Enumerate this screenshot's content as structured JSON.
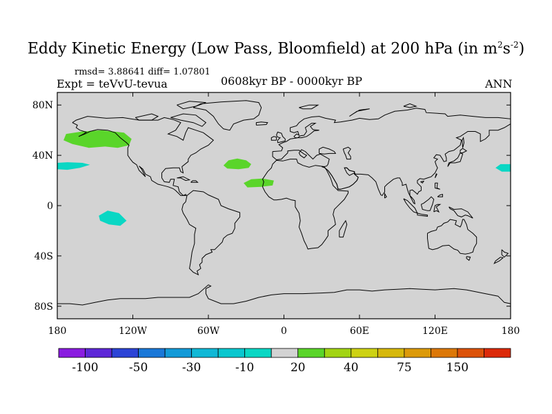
{
  "title": "Eddy Kinetic Energy (Low Pass, Bloomfield) at 200 hPa (in m",
  "title_unit_exp1": "2",
  "title_unit_mid": "s",
  "title_unit_exp2": "-2",
  "title_close": ")",
  "stats": "rmsd= 3.88641 diff= 1.07801",
  "expt": "Expt = teVvU-tevua",
  "period": "0608kyr BP - 0000kyr BP",
  "season": "ANN",
  "map": {
    "projection": "cylindrical-equidistant",
    "lon_range": [
      -180,
      180
    ],
    "lat_range": [
      -90,
      90
    ],
    "background_color": "#d3d3d3",
    "coastline_color": "#000000",
    "x_ticks": [
      {
        "lon": -180,
        "label": "180"
      },
      {
        "lon": -120,
        "label": "120W"
      },
      {
        "lon": -60,
        "label": "60W"
      },
      {
        "lon": 0,
        "label": "0"
      },
      {
        "lon": 60,
        "label": "60E"
      },
      {
        "lon": 120,
        "label": "120E"
      },
      {
        "lon": 180,
        "label": "180"
      }
    ],
    "y_ticks": [
      {
        "lat": 80,
        "label": "80N"
      },
      {
        "lat": 40,
        "label": "40N"
      },
      {
        "lat": 0,
        "label": "0"
      },
      {
        "lat": -40,
        "label": "40S"
      },
      {
        "lat": -80,
        "label": "80S"
      }
    ]
  },
  "anomaly_patches": [
    {
      "name": "north-pacific-positive",
      "color": "#5ad52a",
      "level": 20,
      "polygon": [
        [
          -175,
          52
        ],
        [
          -168,
          49
        ],
        [
          -155,
          46
        ],
        [
          -142,
          47
        ],
        [
          -132,
          46
        ],
        [
          -123,
          48
        ],
        [
          -121,
          53
        ],
        [
          -127,
          58
        ],
        [
          -145,
          60
        ],
        [
          -160,
          59
        ],
        [
          -173,
          57
        ]
      ]
    },
    {
      "name": "north-atlantic-positive",
      "color": "#5ad52a",
      "level": 20,
      "polygon": [
        [
          -48,
          32
        ],
        [
          -44,
          36
        ],
        [
          -37,
          37.5
        ],
        [
          -30,
          36
        ],
        [
          -26,
          33
        ],
        [
          -28,
          30
        ],
        [
          -36,
          29
        ],
        [
          -45,
          29.5
        ]
      ]
    },
    {
      "name": "west-africa-positive",
      "color": "#5ad52a",
      "level": 20,
      "polygon": [
        [
          -32,
          18
        ],
        [
          -26,
          21
        ],
        [
          -17,
          21.5
        ],
        [
          -8,
          20
        ],
        [
          -9,
          16
        ],
        [
          -18,
          15
        ],
        [
          -29,
          14.5
        ]
      ]
    },
    {
      "name": "central-pacific-negative-north",
      "color": "#0ad7c4",
      "level": -10,
      "polygon": [
        [
          -180,
          34
        ],
        [
          -172,
          34.5
        ],
        [
          -160,
          34
        ],
        [
          -154,
          32.5
        ],
        [
          -162,
          30
        ],
        [
          -172,
          28.5
        ],
        [
          -180,
          29
        ]
      ]
    },
    {
      "name": "west-pacific-negative",
      "color": "#0ad7c4",
      "level": -10,
      "polygon": [
        [
          168,
          30
        ],
        [
          172,
          33
        ],
        [
          180,
          33
        ],
        [
          180,
          27
        ],
        [
          173,
          27
        ]
      ]
    },
    {
      "name": "south-pacific-negative",
      "color": "#0ad7c4",
      "level": -10,
      "polygon": [
        [
          -147,
          -8
        ],
        [
          -140,
          -4
        ],
        [
          -131,
          -6
        ],
        [
          -125,
          -12
        ],
        [
          -130,
          -16
        ],
        [
          -139,
          -15
        ],
        [
          -146,
          -12
        ]
      ]
    }
  ],
  "colorbar": {
    "colors": [
      "#8a1ce0",
      "#5e28d8",
      "#2c44d6",
      "#1a78d8",
      "#139ad8",
      "#10b8d6",
      "#0ac7cf",
      "#0ad7c4",
      "#d3d3d3",
      "#5ad52a",
      "#a2d414",
      "#cdd214",
      "#d6b80c",
      "#dc9a0a",
      "#dc7808",
      "#dc520a",
      "#dc2a0a"
    ],
    "labels": [
      {
        "boundary": 1,
        "text": "-100"
      },
      {
        "boundary": 3,
        "text": "-50"
      },
      {
        "boundary": 5,
        "text": "-30"
      },
      {
        "boundary": 7,
        "text": "-10"
      },
      {
        "boundary": 9,
        "text": "20"
      },
      {
        "boundary": 11,
        "text": "40"
      },
      {
        "boundary": 13,
        "text": "75"
      },
      {
        "boundary": 15,
        "text": "150"
      }
    ]
  }
}
